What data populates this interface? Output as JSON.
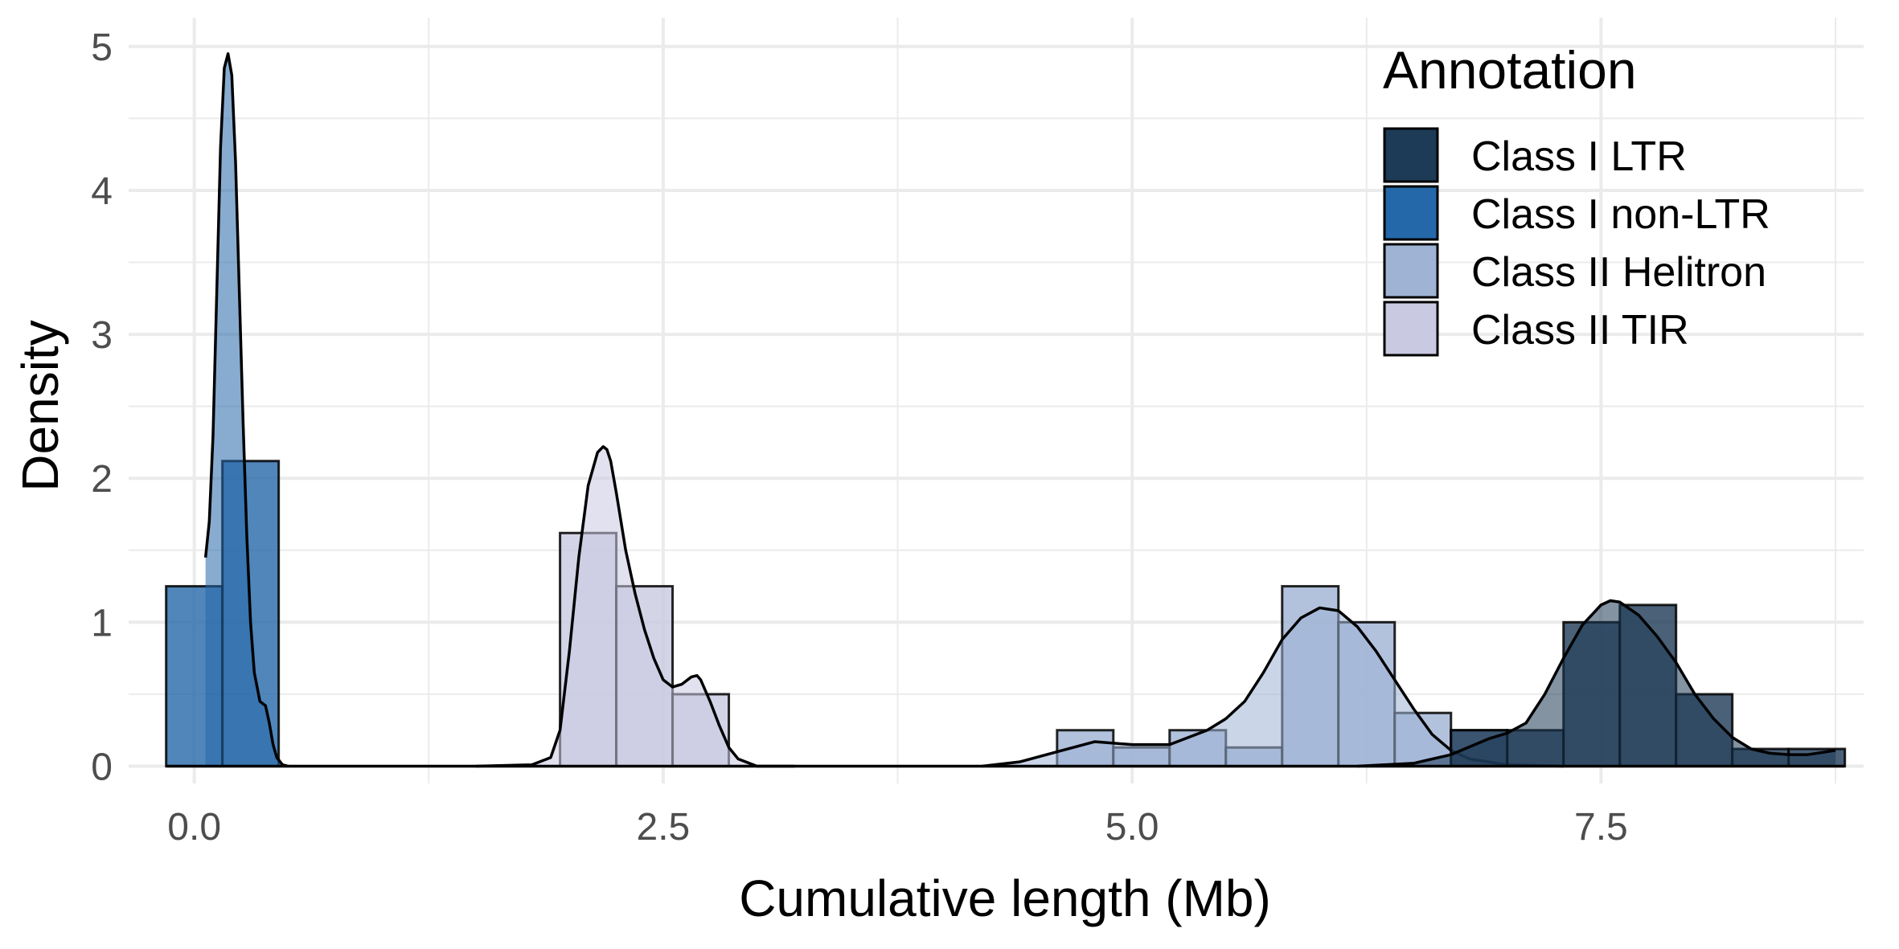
{
  "chart_data": {
    "type": "histogram-density",
    "title": "",
    "xlabel": "Cumulative length (Mb)",
    "ylabel": "Density",
    "xlim": [
      -0.35,
      8.9
    ],
    "ylim": [
      -0.12,
      5.2
    ],
    "x_ticks": [
      "0.0",
      "2.5",
      "5.0",
      "7.5"
    ],
    "x_tick_values": [
      0,
      2.5,
      5,
      7.5
    ],
    "y_ticks": [
      "0",
      "1",
      "2",
      "3",
      "4",
      "5"
    ],
    "y_tick_values": [
      0,
      1,
      2,
      3,
      4,
      5
    ],
    "grid": true,
    "legend": {
      "title": "Annotation",
      "position": "top-right",
      "entries": [
        {
          "label": "Class I LTR",
          "color": "#1d3a56"
        },
        {
          "label": "Class I non-LTR",
          "color": "#2468a9"
        },
        {
          "label": "Class II Helitron",
          "color": "#9fb3d4"
        },
        {
          "label": "Class II TIR",
          "color": "#c9c9e1"
        }
      ]
    },
    "series": [
      {
        "name": "Class II TIR",
        "color": "#c9c9e1",
        "bins": [
          [
            1.95,
            2.25,
            1.62
          ],
          [
            2.25,
            2.55,
            1.25
          ],
          [
            2.55,
            2.85,
            0.5
          ]
        ],
        "density_x": [
          1.5,
          1.8,
          1.9,
          1.95,
          2.0,
          2.05,
          2.1,
          2.15,
          2.18,
          2.2,
          2.22,
          2.25,
          2.3,
          2.35,
          2.4,
          2.45,
          2.5,
          2.55,
          2.6,
          2.65,
          2.68,
          2.7,
          2.75,
          2.8,
          2.85,
          2.9,
          3.0,
          3.2
        ],
        "density_y": [
          0,
          0.01,
          0.06,
          0.25,
          0.8,
          1.45,
          1.95,
          2.18,
          2.22,
          2.2,
          2.12,
          1.9,
          1.5,
          1.2,
          0.95,
          0.75,
          0.6,
          0.55,
          0.57,
          0.62,
          0.63,
          0.6,
          0.45,
          0.28,
          0.13,
          0.05,
          0,
          0
        ]
      },
      {
        "name": "Class II Helitron",
        "color": "#9fb3d4",
        "bins": [
          [
            4.6,
            4.9,
            0.25
          ],
          [
            4.9,
            5.2,
            0.13
          ],
          [
            5.2,
            5.5,
            0.25
          ],
          [
            5.5,
            5.8,
            0.13
          ],
          [
            5.8,
            6.1,
            1.25
          ],
          [
            6.1,
            6.4,
            1.0
          ],
          [
            6.4,
            6.7,
            0.37
          ],
          [
            6.7,
            7.0,
            0.25
          ]
        ],
        "density_x": [
          4.2,
          4.4,
          4.6,
          4.8,
          5.0,
          5.2,
          5.4,
          5.5,
          5.6,
          5.7,
          5.8,
          5.9,
          6.0,
          6.1,
          6.2,
          6.3,
          6.4,
          6.5,
          6.6,
          6.7,
          6.8,
          7.0,
          7.3
        ],
        "density_y": [
          0,
          0.03,
          0.1,
          0.17,
          0.15,
          0.15,
          0.25,
          0.33,
          0.45,
          0.65,
          0.88,
          1.03,
          1.1,
          1.08,
          0.97,
          0.8,
          0.6,
          0.4,
          0.22,
          0.11,
          0.05,
          0.01,
          0
        ]
      },
      {
        "name": "Class I LTR",
        "color": "#1d3a56",
        "bins": [
          [
            6.7,
            7.0,
            0.25
          ],
          [
            7.0,
            7.3,
            0.25
          ],
          [
            7.3,
            7.6,
            1.0
          ],
          [
            7.6,
            7.9,
            1.12
          ],
          [
            7.9,
            8.2,
            0.5
          ],
          [
            8.2,
            8.5,
            0.12
          ],
          [
            8.5,
            8.8,
            0.12
          ]
        ],
        "density_x": [
          6.2,
          6.5,
          6.7,
          6.9,
          7.0,
          7.1,
          7.2,
          7.3,
          7.4,
          7.5,
          7.55,
          7.6,
          7.7,
          7.8,
          7.9,
          8.0,
          8.1,
          8.2,
          8.3,
          8.4,
          8.5,
          8.6,
          8.7,
          8.75
        ],
        "density_y": [
          0,
          0.02,
          0.08,
          0.19,
          0.23,
          0.3,
          0.5,
          0.75,
          0.98,
          1.12,
          1.15,
          1.14,
          1.05,
          0.9,
          0.72,
          0.5,
          0.33,
          0.2,
          0.12,
          0.09,
          0.08,
          0.08,
          0.1,
          0.11
        ]
      },
      {
        "name": "Class I non-LTR",
        "color": "#2468a9",
        "bins": [
          [
            -0.15,
            0.15,
            1.25
          ],
          [
            0.15,
            0.45,
            2.12
          ]
        ],
        "density_x": [
          0.06,
          0.08,
          0.1,
          0.12,
          0.14,
          0.16,
          0.18,
          0.2,
          0.22,
          0.24,
          0.26,
          0.28,
          0.3,
          0.32,
          0.35,
          0.38,
          0.4,
          0.42,
          0.44,
          0.47,
          0.5
        ],
        "density_y": [
          1.45,
          1.7,
          2.3,
          3.3,
          4.3,
          4.85,
          4.95,
          4.8,
          4.2,
          3.3,
          2.4,
          1.6,
          1.0,
          0.65,
          0.45,
          0.42,
          0.3,
          0.15,
          0.06,
          0.01,
          0
        ]
      }
    ]
  }
}
